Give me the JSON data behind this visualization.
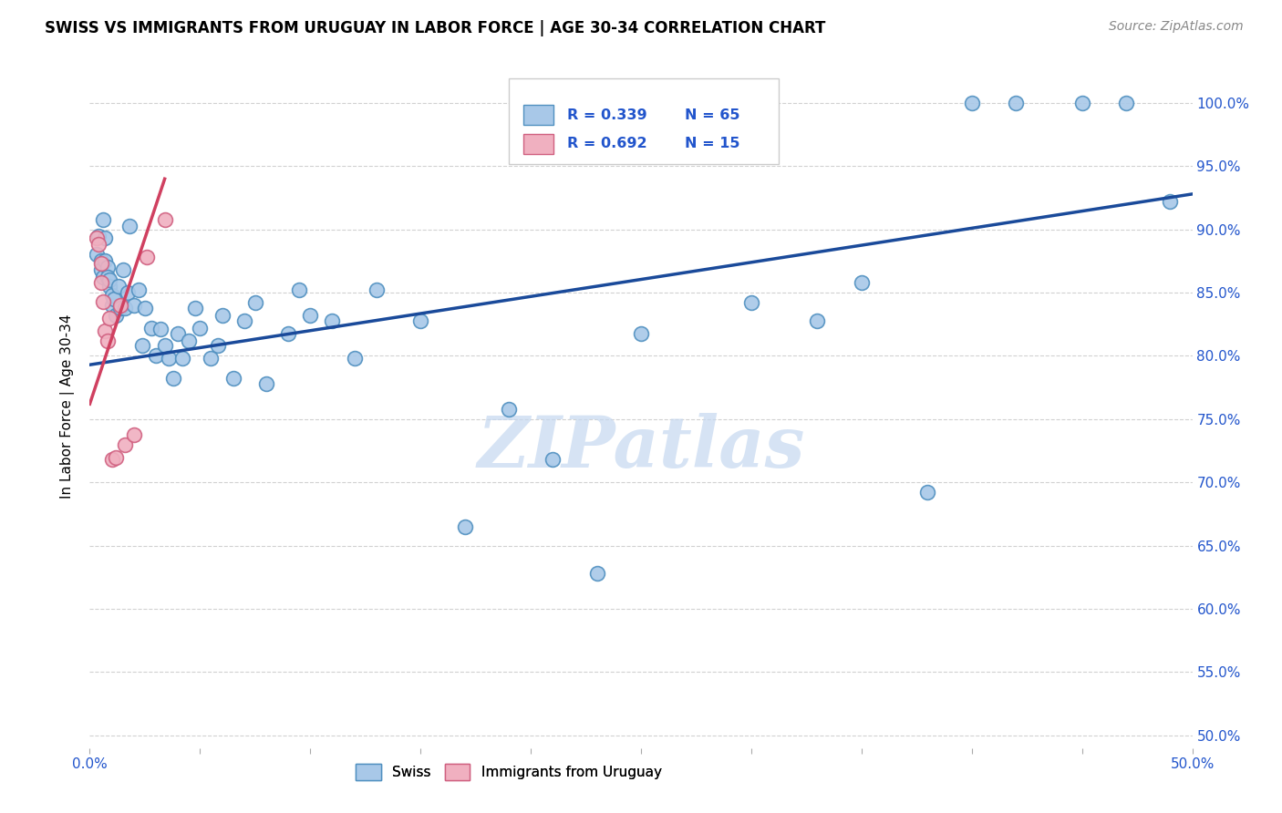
{
  "title": "SWISS VS IMMIGRANTS FROM URUGUAY IN LABOR FORCE | AGE 30-34 CORRELATION CHART",
  "source": "Source: ZipAtlas.com",
  "ylabel": "In Labor Force | Age 30-34",
  "xlim": [
    0.0,
    0.5
  ],
  "ylim": [
    0.49,
    1.03
  ],
  "xticks": [
    0.0,
    0.05,
    0.1,
    0.15,
    0.2,
    0.25,
    0.3,
    0.35,
    0.4,
    0.45,
    0.5
  ],
  "ytick_positions": [
    0.5,
    0.55,
    0.6,
    0.65,
    0.7,
    0.75,
    0.8,
    0.85,
    0.9,
    0.95,
    1.0
  ],
  "ytick_labels": [
    "50.0%",
    "55.0%",
    "60.0%",
    "65.0%",
    "70.0%",
    "75.0%",
    "80.0%",
    "85.0%",
    "90.0%",
    "95.0%",
    "100.0%"
  ],
  "xtick_labels": [
    "0.0%",
    "",
    "",
    "",
    "",
    "",
    "",
    "",
    "",
    "",
    "50.0%"
  ],
  "swiss_color": "#a8c8e8",
  "swiss_edge_color": "#5090c0",
  "uruguay_color": "#f0b0c0",
  "uruguay_edge_color": "#d06080",
  "trend_blue": "#1a4a9a",
  "trend_pink": "#d04060",
  "legend_r_swiss": "R = 0.339",
  "legend_n_swiss": "N = 65",
  "legend_r_uru": "R = 0.692",
  "legend_n_uru": "N = 15",
  "watermark": "ZIPatlas",
  "watermark_color": "#c5d8f0",
  "swiss_x": [
    0.003,
    0.004,
    0.005,
    0.005,
    0.006,
    0.006,
    0.007,
    0.007,
    0.008,
    0.008,
    0.009,
    0.009,
    0.01,
    0.01,
    0.011,
    0.012,
    0.013,
    0.014,
    0.015,
    0.016,
    0.017,
    0.018,
    0.02,
    0.022,
    0.024,
    0.025,
    0.028,
    0.03,
    0.032,
    0.034,
    0.036,
    0.038,
    0.04,
    0.042,
    0.045,
    0.048,
    0.05,
    0.055,
    0.058,
    0.06,
    0.065,
    0.07,
    0.075,
    0.08,
    0.09,
    0.095,
    0.1,
    0.11,
    0.12,
    0.13,
    0.15,
    0.17,
    0.19,
    0.21,
    0.23,
    0.25,
    0.3,
    0.33,
    0.35,
    0.38,
    0.4,
    0.42,
    0.45,
    0.47,
    0.49
  ],
  "swiss_y": [
    0.88,
    0.895,
    0.875,
    0.868,
    0.908,
    0.862,
    0.893,
    0.875,
    0.87,
    0.862,
    0.855,
    0.86,
    0.84,
    0.848,
    0.845,
    0.832,
    0.855,
    0.838,
    0.868,
    0.838,
    0.85,
    0.903,
    0.84,
    0.852,
    0.808,
    0.838,
    0.822,
    0.8,
    0.821,
    0.808,
    0.798,
    0.782,
    0.818,
    0.798,
    0.812,
    0.838,
    0.822,
    0.798,
    0.808,
    0.832,
    0.782,
    0.828,
    0.842,
    0.778,
    0.818,
    0.852,
    0.832,
    0.828,
    0.798,
    0.852,
    0.828,
    0.665,
    0.758,
    0.718,
    0.628,
    0.818,
    0.842,
    0.828,
    0.858,
    0.692,
    1.0,
    1.0,
    1.0,
    1.0,
    0.922
  ],
  "uruguay_x": [
    0.003,
    0.004,
    0.005,
    0.005,
    0.006,
    0.007,
    0.008,
    0.009,
    0.01,
    0.012,
    0.014,
    0.016,
    0.02,
    0.026,
    0.034
  ],
  "uruguay_y": [
    0.893,
    0.888,
    0.873,
    0.858,
    0.843,
    0.82,
    0.812,
    0.83,
    0.718,
    0.72,
    0.84,
    0.73,
    0.738,
    0.878,
    0.908
  ],
  "blue_trend_x0": 0.0,
  "blue_trend_y0": 0.793,
  "blue_trend_x1": 0.5,
  "blue_trend_y1": 0.928,
  "pink_trend_x0": 0.0,
  "pink_trend_y0": 0.762,
  "pink_trend_x1": 0.034,
  "pink_trend_y1": 0.94
}
